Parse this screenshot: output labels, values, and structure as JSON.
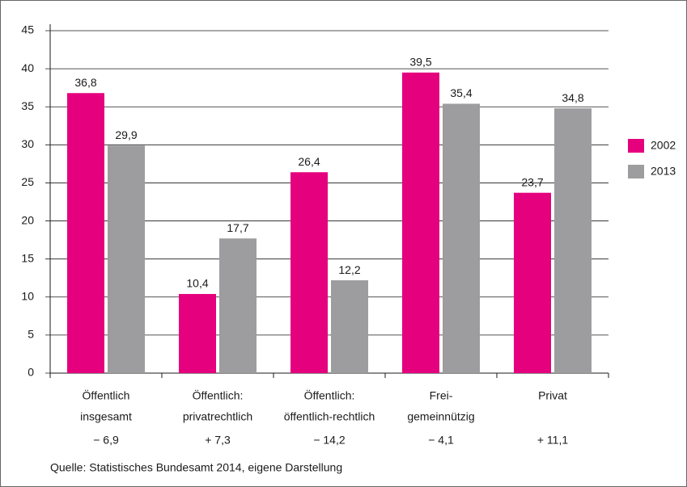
{
  "chart_data": {
    "type": "bar",
    "categories": [
      [
        "Öffentlich",
        "insgesamt"
      ],
      [
        "Öffentlich:",
        "privatrechtlich"
      ],
      [
        "Öffentlich:",
        "öffentlich-rechtlich"
      ],
      [
        "Frei-",
        "gemeinnützig"
      ],
      [
        "Privat"
      ]
    ],
    "changes": [
      "− 6,9",
      "+ 7,3",
      "− 14,2",
      "− 4,1",
      "+ 11,1"
    ],
    "series": [
      {
        "name": "2002",
        "color": "#e5007e",
        "values": [
          36.8,
          10.4,
          26.4,
          39.5,
          23.7
        ],
        "value_labels": [
          "36,8",
          "10,4",
          "26,4",
          "39,5",
          "23,7"
        ]
      },
      {
        "name": "2013",
        "color": "#9d9d9f",
        "values": [
          29.9,
          17.7,
          12.2,
          35.4,
          34.8
        ],
        "value_labels": [
          "29,9",
          "17,7",
          "12,2",
          "35,4",
          "34,8"
        ]
      }
    ],
    "ylim": [
      0,
      45
    ],
    "yticks": [
      0,
      5,
      10,
      15,
      20,
      25,
      30,
      35,
      40,
      45
    ],
    "grid": true,
    "legend": "right",
    "source": "Quelle: Statistisches Bundesamt 2014, eigene Darstellung"
  }
}
